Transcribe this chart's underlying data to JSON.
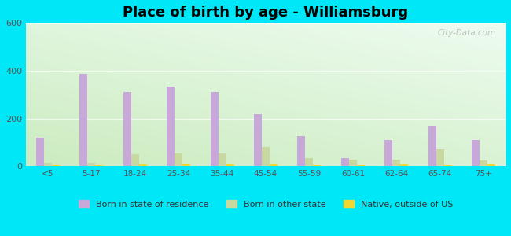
{
  "title": "Place of birth by age - Williamsburg",
  "categories": [
    "<5",
    "5-17",
    "18-24",
    "25-34",
    "35-44",
    "45-54",
    "55-59",
    "60-61",
    "62-64",
    "65-74",
    "75+"
  ],
  "born_in_state": [
    120,
    385,
    310,
    335,
    310,
    220,
    125,
    35,
    110,
    168,
    110
  ],
  "born_other_state": [
    15,
    15,
    50,
    52,
    55,
    80,
    35,
    28,
    28,
    70,
    25
  ],
  "native_outside_us": [
    5,
    5,
    8,
    10,
    8,
    8,
    5,
    5,
    8,
    5,
    8
  ],
  "bar_color_state": "#c8a8d8",
  "bar_color_other": "#c8d8a0",
  "bar_color_native": "#f0d830",
  "ylim": [
    0,
    600
  ],
  "yticks": [
    0,
    200,
    400,
    600
  ],
  "outer_bg": "#00e8f8",
  "title_fontsize": 13,
  "bar_width": 0.18,
  "legend_labels": [
    "Born in state of residence",
    "Born in other state",
    "Native, outside of US"
  ],
  "watermark": "City-Data.com"
}
